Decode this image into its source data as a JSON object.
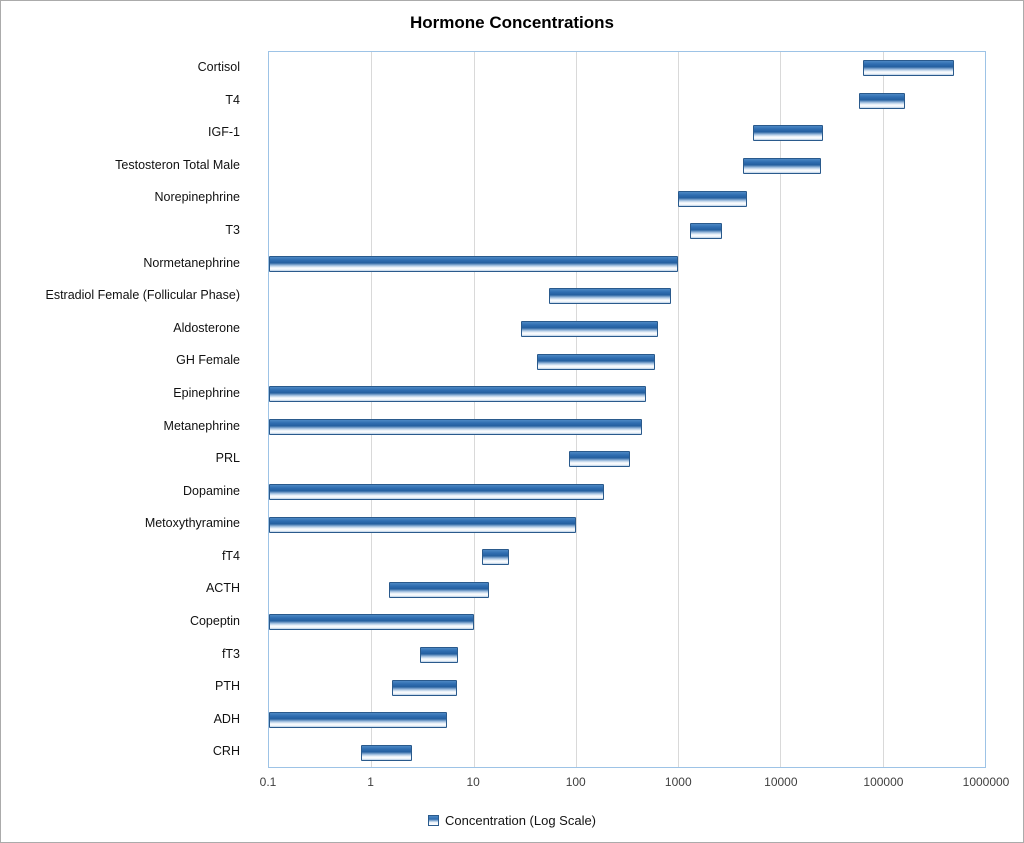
{
  "colors": {
    "bar_border": "#2a5a8c",
    "bar_fill_top": "#4d88c4",
    "bar_fill_mid": "#245f9f",
    "bar_fill_light": "#ffffff",
    "plot_border": "#9dc3e6",
    "gridline": "#d9d9d9",
    "title_text": "#000000",
    "axis_text": "#3f3f3f"
  },
  "chart_data": {
    "type": "bar",
    "orientation": "horizontal",
    "title": "Hormone Concentrations",
    "legend_label": "Concentration (Log Scale)",
    "legend_position": "bottom-center",
    "grid": "vertical-only",
    "x_axis": {
      "scale": "log",
      "min": 0.1,
      "max": 1000000,
      "ticks": [
        {
          "label": "0.1",
          "value": 0.1
        },
        {
          "label": "1",
          "value": 1
        },
        {
          "label": "10",
          "value": 10
        },
        {
          "label": "100",
          "value": 100
        },
        {
          "label": "1000",
          "value": 1000
        },
        {
          "label": "10000",
          "value": 10000
        },
        {
          "label": "100000",
          "value": 100000
        },
        {
          "label": "1000000",
          "value": 1000000
        }
      ]
    },
    "bar_style": "floating range bars (min to max); bars with min 0.1 start at the axis minimum",
    "rows": [
      {
        "label": "Cortisol",
        "min": 64000,
        "max": 500000
      },
      {
        "label": "T4",
        "min": 58000,
        "max": 165000
      },
      {
        "label": "IGF-1",
        "min": 5400,
        "max": 26000
      },
      {
        "label": "Testosteron Total Male",
        "min": 4300,
        "max": 25000
      },
      {
        "label": "Norepinephrine",
        "min": 1000,
        "max": 4700
      },
      {
        "label": "T3",
        "min": 1300,
        "max": 2700
      },
      {
        "label": "Normetanephrine",
        "min": 0.1,
        "max": 1000
      },
      {
        "label": "Estradiol Female (Follicular Phase)",
        "min": 55,
        "max": 850
      },
      {
        "label": "Aldosterone",
        "min": 29,
        "max": 630
      },
      {
        "label": "GH Female",
        "min": 42,
        "max": 590
      },
      {
        "label": "Epinephrine",
        "min": 0.1,
        "max": 480
      },
      {
        "label": "Metanephrine",
        "min": 0.1,
        "max": 440
      },
      {
        "label": "PRL",
        "min": 85,
        "max": 340
      },
      {
        "label": "Dopamine",
        "min": 0.1,
        "max": 190
      },
      {
        "label": "Metoxythyramine",
        "min": 0.1,
        "max": 100
      },
      {
        "label": "fT4",
        "min": 12,
        "max": 22
      },
      {
        "label": "ACTH",
        "min": 1.5,
        "max": 14
      },
      {
        "label": "Copeptin",
        "min": 0.1,
        "max": 10
      },
      {
        "label": "fT3",
        "min": 3,
        "max": 7
      },
      {
        "label": "PTH",
        "min": 1.6,
        "max": 6.9
      },
      {
        "label": "ADH",
        "min": 0.1,
        "max": 5.5
      },
      {
        "label": "CRH",
        "min": 0.8,
        "max": 2.5
      }
    ]
  }
}
